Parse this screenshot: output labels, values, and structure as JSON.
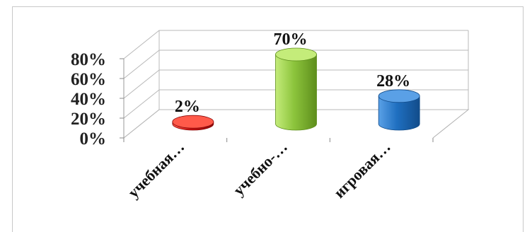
{
  "chart_data": {
    "type": "bar",
    "style": "3d-cylinder",
    "categories": [
      "учебная…",
      "учебно-…",
      "игровая…"
    ],
    "values": [
      2,
      70,
      28
    ],
    "value_labels": [
      "2%",
      "70%",
      "28%"
    ],
    "ylim": [
      0,
      80
    ],
    "y_ticks": [
      0,
      20,
      40,
      60,
      80
    ],
    "y_tick_labels": [
      "0%",
      "20%",
      "40%",
      "60%",
      "80%"
    ],
    "grid": true,
    "legend": "none",
    "colors": [
      "#cc1111",
      "#8cc43c",
      "#1f6fc0"
    ],
    "colors_dark": [
      "#8a0a0a",
      "#5e8e1c",
      "#124c8a"
    ],
    "colors_light": [
      "#ff5a4a",
      "#c4ec7a",
      "#5aa0e6"
    ]
  }
}
